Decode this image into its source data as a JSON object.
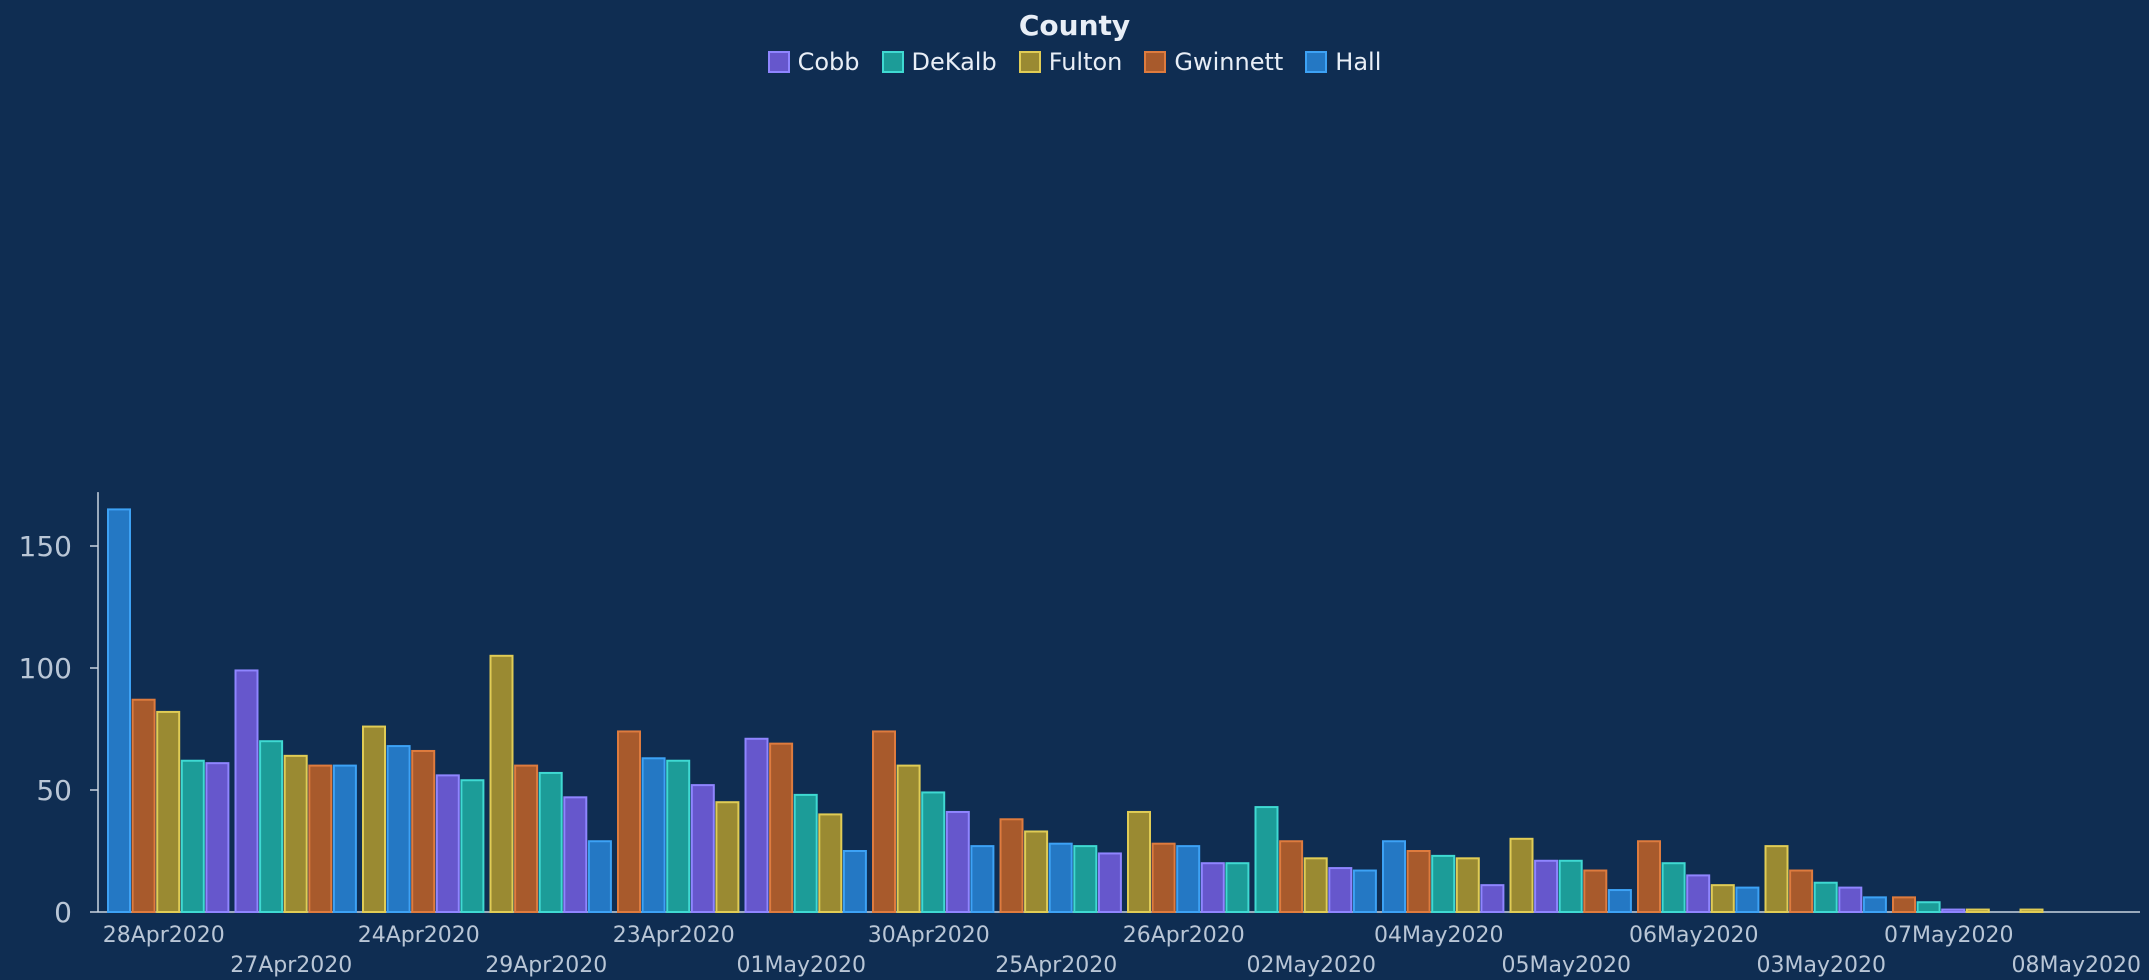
{
  "chart_data": {
    "type": "bar",
    "legend_title": "County",
    "legend_position": "top-center",
    "series": [
      {
        "name": "Cobb",
        "color": "#6657cc",
        "stroke": "#8f85ff"
      },
      {
        "name": "DeKalb",
        "color": "#1c9c98",
        "stroke": "#3fd9d2"
      },
      {
        "name": "Fulton",
        "color": "#9a8a32",
        "stroke": "#e0cc55"
      },
      {
        "name": "Gwinnett",
        "color": "#a85a2c",
        "stroke": "#de7b3e"
      },
      {
        "name": "Hall",
        "color": "#2478c4",
        "stroke": "#3da2f5"
      }
    ],
    "ylim": [
      0,
      168
    ],
    "yticks": [
      0,
      50,
      100,
      150
    ],
    "grid": false,
    "groups": [
      {
        "label": "28Apr2020",
        "bars": [
          [
            "Hall",
            165
          ],
          [
            "Gwinnett",
            87
          ],
          [
            "Fulton",
            82
          ],
          [
            "DeKalb",
            62
          ],
          [
            "Cobb",
            61
          ]
        ]
      },
      {
        "label": "27Apr2020",
        "bars": [
          [
            "Cobb",
            99
          ],
          [
            "DeKalb",
            70
          ],
          [
            "Fulton",
            64
          ],
          [
            "Gwinnett",
            60
          ],
          [
            "Hall",
            60
          ]
        ]
      },
      {
        "label": "24Apr2020",
        "bars": [
          [
            "Fulton",
            76
          ],
          [
            "Hall",
            68
          ],
          [
            "Gwinnett",
            66
          ],
          [
            "Cobb",
            56
          ],
          [
            "DeKalb",
            54
          ]
        ]
      },
      {
        "label": "29Apr2020",
        "bars": [
          [
            "Fulton",
            105
          ],
          [
            "Gwinnett",
            60
          ],
          [
            "DeKalb",
            57
          ],
          [
            "Cobb",
            47
          ],
          [
            "Hall",
            29
          ]
        ]
      },
      {
        "label": "23Apr2020",
        "bars": [
          [
            "Gwinnett",
            74
          ],
          [
            "Hall",
            63
          ],
          [
            "DeKalb",
            62
          ],
          [
            "Cobb",
            52
          ],
          [
            "Fulton",
            45
          ]
        ]
      },
      {
        "label": "01May2020",
        "bars": [
          [
            "Cobb",
            71
          ],
          [
            "Gwinnett",
            69
          ],
          [
            "DeKalb",
            48
          ],
          [
            "Fulton",
            40
          ],
          [
            "Hall",
            25
          ]
        ]
      },
      {
        "label": "30Apr2020",
        "bars": [
          [
            "Gwinnett",
            74
          ],
          [
            "Fulton",
            60
          ],
          [
            "DeKalb",
            49
          ],
          [
            "Cobb",
            41
          ],
          [
            "Hall",
            27
          ]
        ]
      },
      {
        "label": "25Apr2020",
        "bars": [
          [
            "Gwinnett",
            38
          ],
          [
            "Fulton",
            33
          ],
          [
            "Hall",
            28
          ],
          [
            "DeKalb",
            27
          ],
          [
            "Cobb",
            24
          ]
        ]
      },
      {
        "label": "26Apr2020",
        "bars": [
          [
            "Fulton",
            41
          ],
          [
            "Gwinnett",
            28
          ],
          [
            "Hall",
            27
          ],
          [
            "Cobb",
            20
          ],
          [
            "DeKalb",
            20
          ]
        ]
      },
      {
        "label": "02May2020",
        "bars": [
          [
            "DeKalb",
            43
          ],
          [
            "Gwinnett",
            29
          ],
          [
            "Fulton",
            22
          ],
          [
            "Cobb",
            18
          ],
          [
            "Hall",
            17
          ]
        ]
      },
      {
        "label": "04May2020",
        "bars": [
          [
            "Hall",
            29
          ],
          [
            "Gwinnett",
            25
          ],
          [
            "DeKalb",
            23
          ],
          [
            "Fulton",
            22
          ],
          [
            "Cobb",
            11
          ]
        ]
      },
      {
        "label": "05May2020",
        "bars": [
          [
            "Fulton",
            30
          ],
          [
            "Cobb",
            21
          ],
          [
            "DeKalb",
            21
          ],
          [
            "Gwinnett",
            17
          ],
          [
            "Hall",
            9
          ]
        ]
      },
      {
        "label": "06May2020",
        "bars": [
          [
            "Gwinnett",
            29
          ],
          [
            "DeKalb",
            20
          ],
          [
            "Cobb",
            15
          ],
          [
            "Fulton",
            11
          ],
          [
            "Hall",
            10
          ]
        ]
      },
      {
        "label": "03May2020",
        "bars": [
          [
            "Fulton",
            27
          ],
          [
            "Gwinnett",
            17
          ],
          [
            "DeKalb",
            12
          ],
          [
            "Cobb",
            10
          ],
          [
            "Hall",
            6
          ]
        ]
      },
      {
        "label": "07May2020",
        "bars": [
          [
            "Gwinnett",
            6
          ],
          [
            "DeKalb",
            4
          ],
          [
            "Cobb",
            1
          ],
          [
            "Fulton",
            1
          ]
        ]
      },
      {
        "label": "08May2020",
        "bars": [
          [
            "Fulton",
            1
          ]
        ]
      }
    ]
  }
}
